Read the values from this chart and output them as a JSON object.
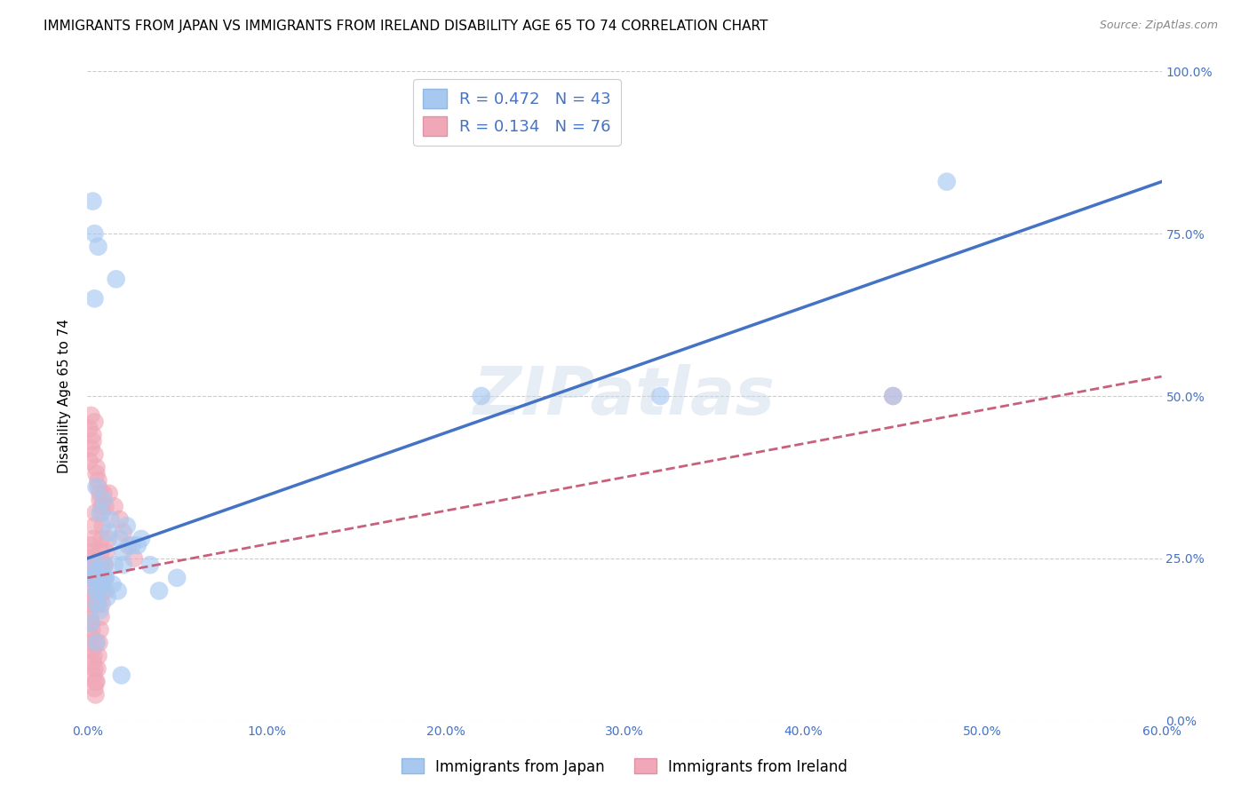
{
  "title": "IMMIGRANTS FROM JAPAN VS IMMIGRANTS FROM IRELAND DISABILITY AGE 65 TO 74 CORRELATION CHART",
  "source": "Source: ZipAtlas.com",
  "ylabel": "Disability Age 65 to 74",
  "x_tick_labels": [
    "0.0%",
    "10.0%",
    "20.0%",
    "30.0%",
    "40.0%",
    "50.0%",
    "60.0%"
  ],
  "x_tick_values": [
    0.0,
    10.0,
    20.0,
    30.0,
    40.0,
    50.0,
    60.0
  ],
  "y_tick_labels": [
    "0.0%",
    "25.0%",
    "50.0%",
    "75.0%",
    "100.0%"
  ],
  "y_tick_values": [
    0.0,
    25.0,
    50.0,
    75.0,
    100.0
  ],
  "xlim": [
    0.0,
    60.0
  ],
  "ylim": [
    0.0,
    100.0
  ],
  "legend_japan_R": "0.472",
  "legend_japan_N": "43",
  "legend_ireland_R": "0.134",
  "legend_ireland_N": "76",
  "japan_color": "#a8c8f0",
  "ireland_color": "#f0a8b8",
  "japan_line_color": "#4472c4",
  "ireland_line_color": "#c8607c",
  "background_color": "#ffffff",
  "grid_color": "#cccccc",
  "watermark_text": "ZIPatlas",
  "title_fontsize": 11,
  "axis_label_fontsize": 11,
  "tick_fontsize": 10,
  "japan_line_x0": 0.0,
  "japan_line_y0": 25.0,
  "japan_line_x1": 60.0,
  "japan_line_y1": 83.0,
  "ireland_line_x0": 0.0,
  "ireland_line_y0": 22.0,
  "ireland_line_x1": 60.0,
  "ireland_line_y1": 53.0,
  "japan_scatter_x": [
    0.3,
    0.6,
    0.5,
    0.4,
    1.0,
    0.8,
    1.5,
    2.0,
    2.5,
    3.0,
    1.2,
    0.7,
    0.9,
    1.8,
    2.2,
    0.5,
    1.3,
    0.4,
    1.6,
    2.8,
    0.3,
    0.6,
    0.8,
    1.0,
    1.4,
    2.0,
    0.5,
    0.7,
    1.1,
    1.7,
    5.0,
    4.0,
    3.5,
    0.4,
    0.6,
    0.3,
    45.0,
    48.0,
    22.0,
    32.0,
    0.2,
    0.5,
    1.9
  ],
  "japan_scatter_y": [
    22.0,
    23.0,
    20.0,
    24.0,
    22.0,
    21.0,
    24.0,
    26.0,
    27.0,
    28.0,
    29.0,
    32.0,
    34.0,
    28.0,
    30.0,
    36.0,
    31.0,
    65.0,
    68.0,
    27.0,
    22.0,
    20.0,
    24.0,
    22.0,
    21.0,
    24.0,
    18.0,
    17.0,
    19.0,
    20.0,
    22.0,
    20.0,
    24.0,
    75.0,
    73.0,
    80.0,
    50.0,
    83.0,
    50.0,
    50.0,
    15.0,
    12.0,
    7.0
  ],
  "ireland_scatter_x": [
    0.05,
    0.1,
    0.15,
    0.2,
    0.25,
    0.3,
    0.35,
    0.4,
    0.45,
    0.5,
    0.55,
    0.6,
    0.65,
    0.7,
    0.75,
    0.8,
    0.85,
    0.9,
    0.95,
    1.0,
    0.1,
    0.2,
    0.3,
    0.4,
    0.5,
    0.6,
    0.7,
    0.8,
    0.9,
    1.0,
    0.05,
    0.1,
    0.15,
    0.2,
    0.25,
    0.3,
    0.35,
    0.4,
    0.45,
    0.5,
    0.1,
    0.2,
    0.3,
    0.4,
    0.5,
    0.6,
    0.7,
    0.8,
    1.2,
    1.5,
    1.8,
    2.0,
    2.3,
    2.6,
    0.05,
    0.1,
    0.15,
    0.2,
    0.25,
    0.3,
    0.35,
    0.4,
    0.45,
    0.5,
    0.55,
    0.6,
    0.65,
    0.7,
    0.75,
    0.8,
    0.85,
    0.9,
    0.95,
    1.05,
    1.15,
    45.0
  ],
  "ireland_scatter_y": [
    22.0,
    23.0,
    25.0,
    27.0,
    24.0,
    26.0,
    28.0,
    30.0,
    32.0,
    22.0,
    20.0,
    18.0,
    22.0,
    24.0,
    26.0,
    28.0,
    30.0,
    22.0,
    24.0,
    20.0,
    40.0,
    42.0,
    44.0,
    46.0,
    38.0,
    36.0,
    34.0,
    32.0,
    35.0,
    33.0,
    20.0,
    18.0,
    16.0,
    15.0,
    14.0,
    12.0,
    10.0,
    8.0,
    6.0,
    12.0,
    45.0,
    47.0,
    43.0,
    41.0,
    39.0,
    37.0,
    35.0,
    33.0,
    35.0,
    33.0,
    31.0,
    29.0,
    27.0,
    25.0,
    19.0,
    17.0,
    15.0,
    13.0,
    11.0,
    9.0,
    7.0,
    5.0,
    4.0,
    6.0,
    8.0,
    10.0,
    12.0,
    14.0,
    16.0,
    18.0,
    20.0,
    22.0,
    24.0,
    26.0,
    28.0,
    50.0
  ]
}
